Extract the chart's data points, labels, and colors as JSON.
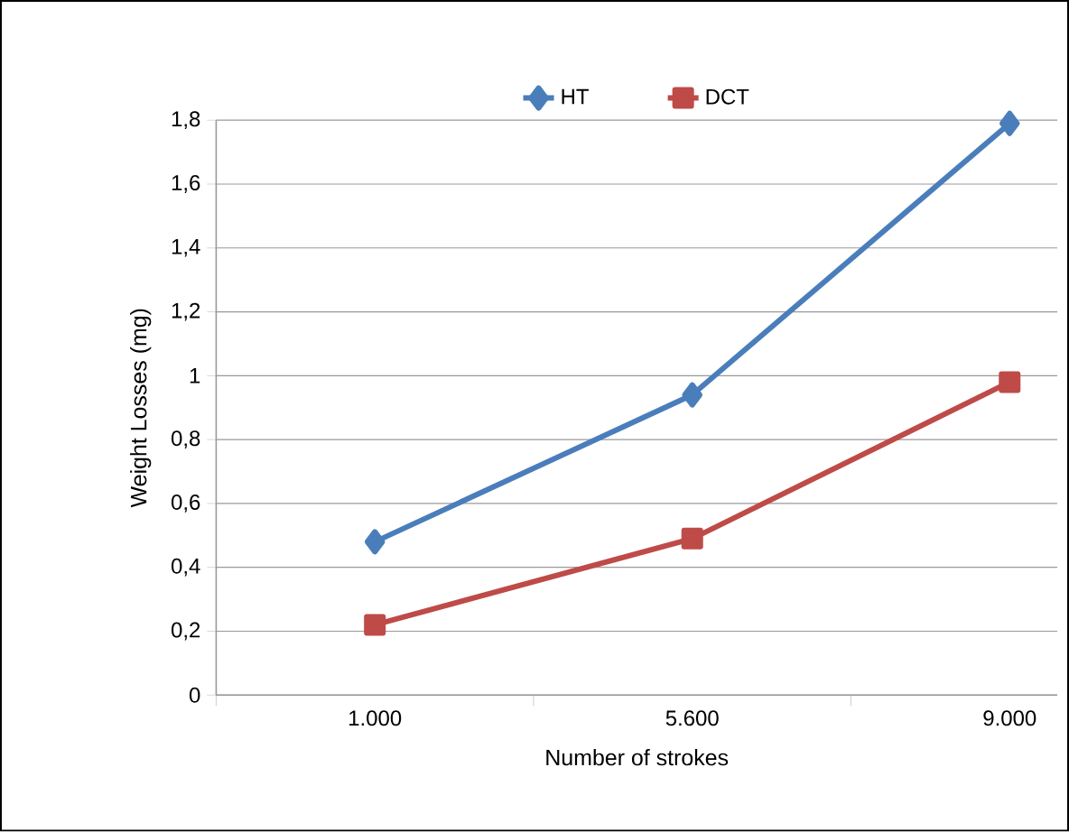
{
  "chart_data": {
    "type": "line",
    "xlabel": "Number of strokes",
    "ylabel": "Weight Losses (mg)",
    "categories": [
      "1.000",
      "5.600",
      "9.000"
    ],
    "series": [
      {
        "name": "HT",
        "color": "#4a7ebb",
        "marker": "diamond",
        "values": [
          0.48,
          0.94,
          1.79
        ]
      },
      {
        "name": "DCT",
        "color": "#be4b48",
        "marker": "square",
        "values": [
          0.22,
          0.49,
          0.98
        ]
      }
    ],
    "ylim": [
      0,
      1.8
    ],
    "yticks": [
      0,
      {
        "value": 0.2,
        "label": "0,2"
      },
      {
        "value": 0.4,
        "label": "0,4"
      },
      {
        "value": 0.6,
        "label": "0,6"
      },
      {
        "value": 0.8,
        "label": "0,8"
      },
      1,
      {
        "value": 1.2,
        "label": "1,2"
      },
      {
        "value": 1.4,
        "label": "1,4"
      },
      {
        "value": 1.6,
        "label": "1,6"
      },
      {
        "value": 1.8,
        "label": "1,8"
      }
    ],
    "grid": "y",
    "legend": "top",
    "line_style": "solid"
  }
}
